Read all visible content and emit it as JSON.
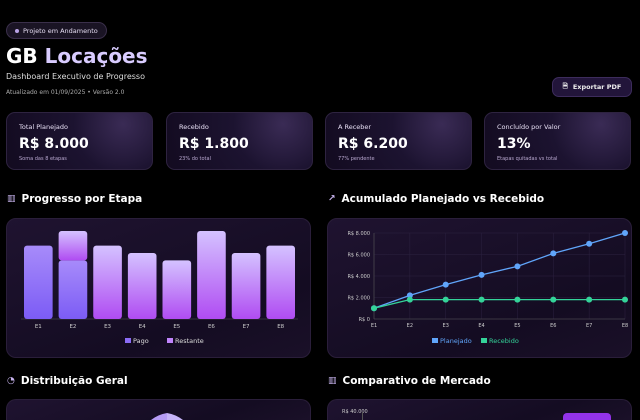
{
  "header": {
    "badge": "Projeto em Andamento",
    "title_a": "GB ",
    "title_b": "Locações",
    "subtitle": "Dashboard Executivo de Progresso",
    "updated": "Atualizado em 01/09/2025 • Versão 2.0",
    "export_label": "Exportar PDF"
  },
  "kpis": [
    {
      "label": "Total Planejado",
      "value": "R$ 8.000",
      "sub": "Soma das 8 etapas"
    },
    {
      "label": "Recebido",
      "value": "R$ 1.800",
      "sub": "23% do total"
    },
    {
      "label": "A Receber",
      "value": "R$ 6.200",
      "sub": "77% pendente"
    },
    {
      "label": "Concluído por Valor",
      "value": "13%",
      "sub": "Etapas quitadas vs total"
    }
  ],
  "sections": {
    "progress": "Progresso por Etapa",
    "cumulative": "Acumulado Planejado vs Recebido",
    "distribution": "Distribuição Geral",
    "market": "Comparativo de Mercado",
    "market_tick": "R$ 40.000"
  },
  "colors": {
    "pago": "#8b6cf6",
    "restante": "#c084fc",
    "planejado": "#60a5fa",
    "recebido": "#34d399"
  },
  "chart_data": [
    {
      "type": "bar",
      "stacked": true,
      "categories": [
        "E1",
        "E2",
        "E3",
        "E4",
        "E5",
        "E6",
        "E7",
        "E8"
      ],
      "series": [
        {
          "name": "Pago",
          "values": [
            1000,
            800,
            0,
            0,
            0,
            0,
            0,
            0
          ]
        },
        {
          "name": "Restante",
          "values": [
            0,
            400,
            1000,
            900,
            800,
            1200,
            900,
            1000
          ]
        }
      ],
      "legend": "bottom",
      "grid": false
    },
    {
      "type": "line",
      "categories": [
        "E1",
        "E2",
        "E3",
        "E4",
        "E5",
        "E6",
        "E7",
        "E8"
      ],
      "series": [
        {
          "name": "Planejado",
          "values": [
            1000,
            2200,
            3200,
            4100,
            4900,
            6100,
            7000,
            8000
          ]
        },
        {
          "name": "Recebido",
          "values": [
            1000,
            1800,
            1800,
            1800,
            1800,
            1800,
            1800,
            1800
          ]
        }
      ],
      "ylim": [
        0,
        8000
      ],
      "yticks": [
        "R$ 0",
        "R$ 2.000",
        "R$ 4.000",
        "R$ 6.000",
        "R$ 8.000"
      ],
      "legend": "bottom",
      "grid": true
    }
  ]
}
